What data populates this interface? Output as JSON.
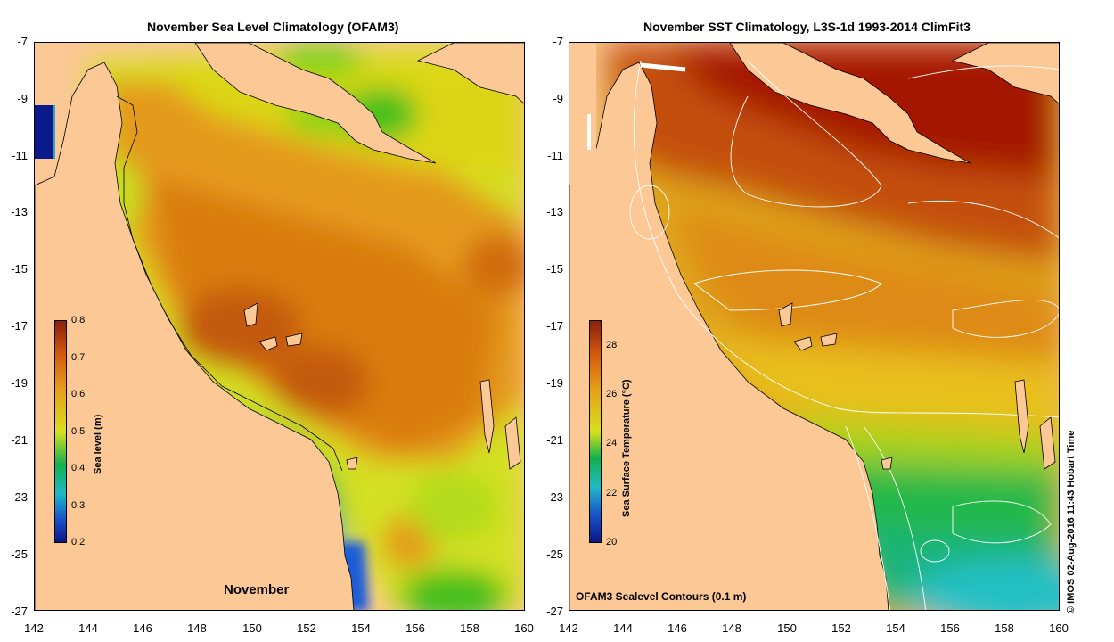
{
  "left_panel": {
    "title": "November Sea Level Climatology (OFAM3)",
    "month_label": "November",
    "colorbar": {
      "label": "Sea level (m)",
      "ticks": [
        "0.8",
        "0.7",
        "0.6",
        "0.5",
        "0.4",
        "0.3",
        "0.2"
      ],
      "range": [
        0.2,
        0.8
      ]
    }
  },
  "right_panel": {
    "title": "November SST Climatology, L3S-1d 1993-2014 ClimFit3",
    "contour_note": "OFAM3 Sealevel Contours (0.1 m)",
    "colorbar": {
      "label": "Sea Surface Temperature (°C)",
      "ticks": [
        "28",
        "26",
        "24",
        "22",
        "20"
      ],
      "range": [
        20,
        29
      ]
    }
  },
  "axes": {
    "lat_ticks": [
      "-7",
      "-9",
      "-11",
      "-13",
      "-15",
      "-17",
      "-19",
      "-21",
      "-23",
      "-25",
      "-27"
    ],
    "lon_ticks": [
      "142",
      "144",
      "146",
      "148",
      "150",
      "152",
      "154",
      "156",
      "158",
      "160"
    ],
    "lat_range": [
      -27,
      -7
    ],
    "lon_range": [
      142,
      160
    ]
  },
  "credit": "© IMOS 02-Aug-2016 11:43 Hobart Time",
  "colors": {
    "land": "#fbc896",
    "coast": "#000000",
    "contour": "#ffffff"
  }
}
